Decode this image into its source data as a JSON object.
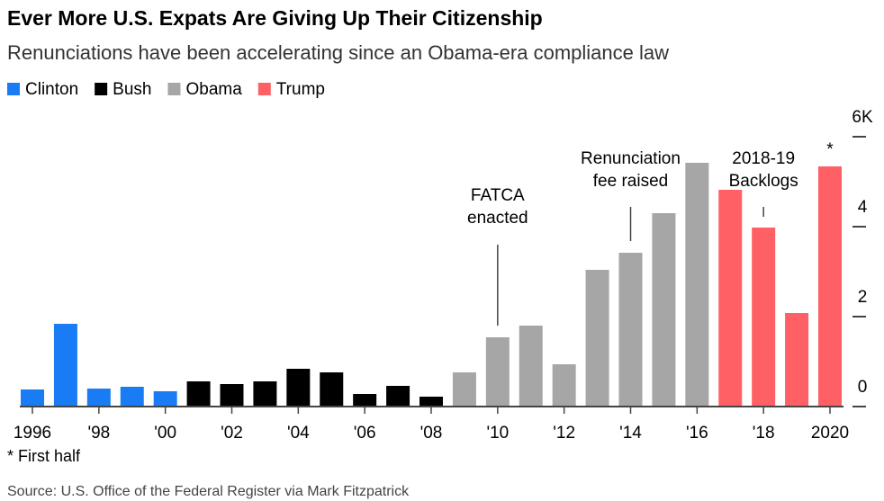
{
  "chart_data": {
    "type": "bar",
    "title": "Ever More U.S. Expats Are Giving Up Their Citizenship",
    "subtitle": "Renunciations have been accelerating since an Obama-era compliance law",
    "categories": [
      "1996",
      null,
      "'98",
      null,
      "'00",
      null,
      "'02",
      null,
      "'04",
      null,
      "'06",
      null,
      "'08",
      null,
      "'10",
      null,
      "'12",
      null,
      "'14",
      null,
      "'16",
      null,
      "'18",
      null,
      "2020"
    ],
    "series": [
      {
        "name": "Clinton",
        "color": "#1a7cf5",
        "values": [
          0.38,
          1.84,
          0.4,
          0.44,
          0.34,
          null,
          null,
          null,
          null,
          null,
          null,
          null,
          null,
          null,
          null,
          null,
          null,
          null,
          null,
          null,
          null,
          null,
          null,
          null,
          null
        ]
      },
      {
        "name": "Bush",
        "color": "#000000",
        "values": [
          null,
          null,
          null,
          null,
          null,
          0.56,
          0.5,
          0.56,
          0.84,
          0.76,
          0.28,
          0.46,
          0.22,
          null,
          null,
          null,
          null,
          null,
          null,
          null,
          null,
          null,
          null,
          null,
          null
        ]
      },
      {
        "name": "Obama",
        "color": "#a6a6a6",
        "values": [
          null,
          null,
          null,
          null,
          null,
          null,
          null,
          null,
          null,
          null,
          null,
          null,
          null,
          0.76,
          1.54,
          1.8,
          0.94,
          3.04,
          3.42,
          4.3,
          5.42,
          null,
          null,
          null,
          null
        ]
      },
      {
        "name": "Trump",
        "color": "#ff6066",
        "values": [
          null,
          null,
          null,
          null,
          null,
          null,
          null,
          null,
          null,
          null,
          null,
          null,
          null,
          null,
          null,
          null,
          null,
          null,
          null,
          null,
          null,
          4.82,
          3.98,
          2.08,
          5.34
        ]
      }
    ],
    "ylim": [
      0,
      6
    ],
    "yticks": [
      0,
      2,
      4,
      {
        "value": 6,
        "label": "6K"
      }
    ],
    "annotations": [
      {
        "lines": [
          "FATCA",
          "enacted"
        ]
      },
      {
        "lines": [
          "Renunciation",
          "fee raised"
        ]
      },
      {
        "lines": [
          "2018-19",
          "Backlogs"
        ]
      },
      {
        "lines": [
          "*"
        ]
      }
    ],
    "footnote": "* First half",
    "source": "Source: U.S. Office of the Federal Register via Mark Fitzpatrick"
  }
}
